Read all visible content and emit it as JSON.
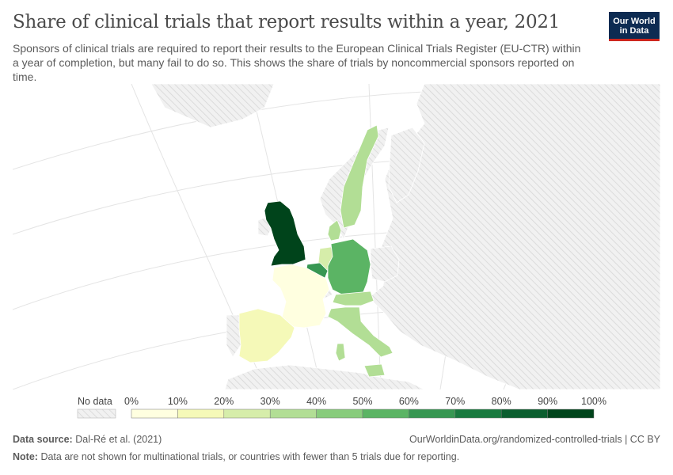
{
  "header": {
    "title": "Share of clinical trials that report results within a year, 2021",
    "subtitle": "Sponsors of clinical trials are required to report their results to the European Clinical Trials Register (EU-CTR) within a year of completion, but many fail to do so. This shows the share of trials by noncommercial sponsors reported on time."
  },
  "logo": {
    "line1": "Our World",
    "line2": "in Data"
  },
  "colors": {
    "no_data_fill": "#f1f1f1",
    "hatch": "#d6d6d6",
    "border": "#ffffff",
    "graticule": "#e4e4e4",
    "legend_bins": [
      "#ffffe0",
      "#f5f9b8",
      "#d6edaa",
      "#b2de95",
      "#88cc7c",
      "#5bb464",
      "#379752",
      "#197a3f",
      "#0b5e2f",
      "#00441b"
    ]
  },
  "legend": {
    "no_data_label": "No data",
    "ticks": [
      "0%",
      "10%",
      "20%",
      "30%",
      "40%",
      "50%",
      "60%",
      "70%",
      "80%",
      "90%",
      "100%"
    ]
  },
  "map": {
    "countries": [
      {
        "id": "united-kingdom",
        "value": 97
      },
      {
        "id": "ireland",
        "value": null
      },
      {
        "id": "france",
        "value": 5
      },
      {
        "id": "spain",
        "value": 17
      },
      {
        "id": "portugal",
        "value": null
      },
      {
        "id": "belgium",
        "value": 68
      },
      {
        "id": "netherlands",
        "value": 22
      },
      {
        "id": "germany",
        "value": 58
      },
      {
        "id": "denmark",
        "value": 38
      },
      {
        "id": "sweden",
        "value": 33
      },
      {
        "id": "norway",
        "value": null
      },
      {
        "id": "finland",
        "value": null
      },
      {
        "id": "switzerland",
        "value": null
      },
      {
        "id": "austria",
        "value": 38
      },
      {
        "id": "italy",
        "value": 38
      },
      {
        "id": "sardinia",
        "value": 38
      },
      {
        "id": "sicily",
        "value": 38
      },
      {
        "id": "poland",
        "value": null
      }
    ]
  },
  "footer": {
    "source_label": "Data source:",
    "source_text": "Dal-Ré et al. (2021)",
    "url_text": "OurWorldinData.org/randomized-controlled-trials | CC BY",
    "note_label": "Note:",
    "note_text": "Data are not shown for multinational trials, or countries with fewer than 5 trials due for reporting."
  }
}
